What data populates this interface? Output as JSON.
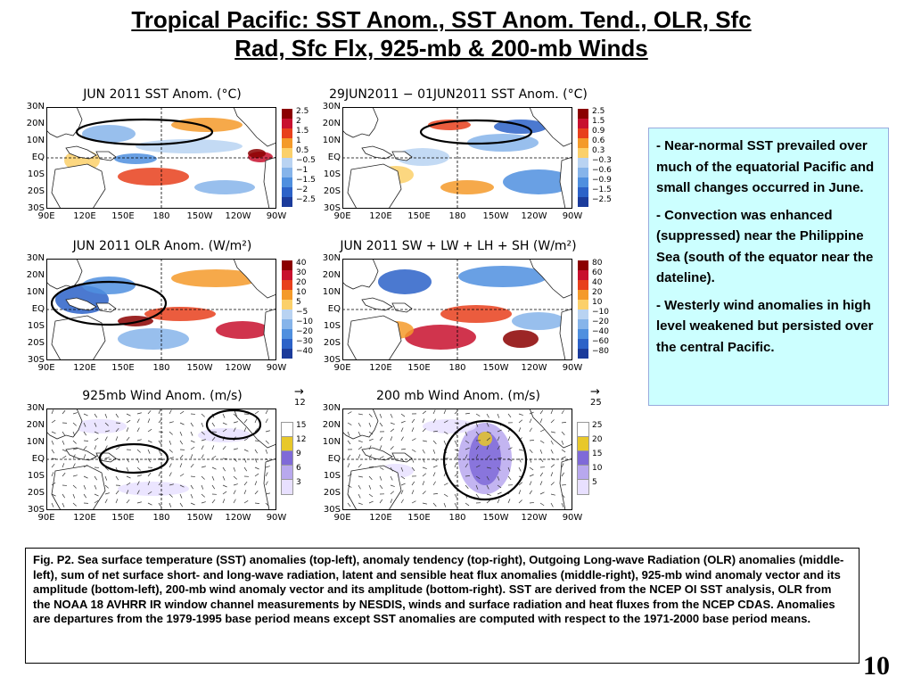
{
  "slide": {
    "title_line1": "Tropical Pacific: SST Anom., SST Anom. Tend., OLR, Sfc",
    "title_line2": "Rad, Sfc Flx, 925-mb & 200-mb Winds",
    "page_number": "10"
  },
  "axes": {
    "lat_labels": [
      "30N",
      "20N",
      "10N",
      "EQ",
      "10S",
      "20S",
      "30S"
    ],
    "lon_labels": [
      "90E",
      "120E",
      "150E",
      "180",
      "150W",
      "120W",
      "90W"
    ]
  },
  "maps": [
    {
      "id": "sst",
      "title": "JUN 2011 SST Anom. (°C)",
      "colorbar": [
        "2.5",
        "2",
        "1.5",
        "1",
        "0.5",
        "−0.5",
        "−1",
        "−1.5",
        "−2",
        "−2.5"
      ]
    },
    {
      "id": "sst_tend",
      "title": "29JUN2011 − 01JUN2011 SST Anom. (°C)",
      "colorbar": [
        "2.5",
        "1.5",
        "0.9",
        "0.6",
        "0.3",
        "−0.3",
        "−0.6",
        "−0.9",
        "−1.5",
        "−2.5"
      ]
    },
    {
      "id": "olr",
      "title": "JUN 2011 OLR Anom. (W/m²)",
      "colorbar": [
        "40",
        "30",
        "20",
        "10",
        "5",
        "−5",
        "−10",
        "−20",
        "−30",
        "−40"
      ]
    },
    {
      "id": "sfc_flux",
      "title": "JUN 2011 SW + LW + LH + SH (W/m²)",
      "colorbar": [
        "80",
        "60",
        "40",
        "20",
        "10",
        "−10",
        "−20",
        "−40",
        "−60",
        "−80"
      ]
    },
    {
      "id": "wind925",
      "title": "925mb Wind Anom. (m/s)",
      "ref_vector": "12",
      "colorbar": [
        "15",
        "12",
        "9",
        "6",
        "3"
      ]
    },
    {
      "id": "wind200",
      "title": "200 mb Wind Anom. (m/s)",
      "ref_vector": "25",
      "colorbar": [
        "25",
        "20",
        "15",
        "10",
        "5"
      ]
    }
  ],
  "colors": {
    "diverging": [
      "#8b0000",
      "#c8102e",
      "#e8401c",
      "#f49a2a",
      "#fbd06a",
      "#b9d3f2",
      "#86b4ea",
      "#4f8fdf",
      "#2c62c8",
      "#1b3b9b"
    ],
    "wind": [
      "#e8e0ff",
      "#b8a8ee",
      "#7f6ad8",
      "#e8c82a",
      "#ffffff"
    ],
    "textbox_bg": "#ccffff",
    "circle": "#000000"
  },
  "bullets": [
    "Near-normal SST prevailed over much of the equatorial Pacific and small changes occurred in June.",
    "Convection was enhanced (suppressed) near the Philippine Sea (south of the equator near the dateline).",
    "Westerly wind anomalies in high level  weakened but persisted over the central Pacific."
  ],
  "caption": "Fig. P2. Sea surface temperature (SST) anomalies (top-left), anomaly tendency (top-right), Outgoing Long-wave Radiation (OLR) anomalies (middle-left), sum of net surface short- and long-wave radiation, latent and sensible heat flux anomalies (middle-right), 925-mb wind anomaly vector and its amplitude  (bottom-left), 200-mb wind anomaly vector and its amplitude  (bottom-right). SST are derived from the NCEP OI SST analysis, OLR from the NOAA 18 AVHRR IR window channel measurements by NESDIS, winds and surface radiation and heat fluxes from the NCEP CDAS. Anomalies are  departures from the 1979-1995 base period means except SST anomalies are computed with respect to the 1971-2000 base period means."
}
